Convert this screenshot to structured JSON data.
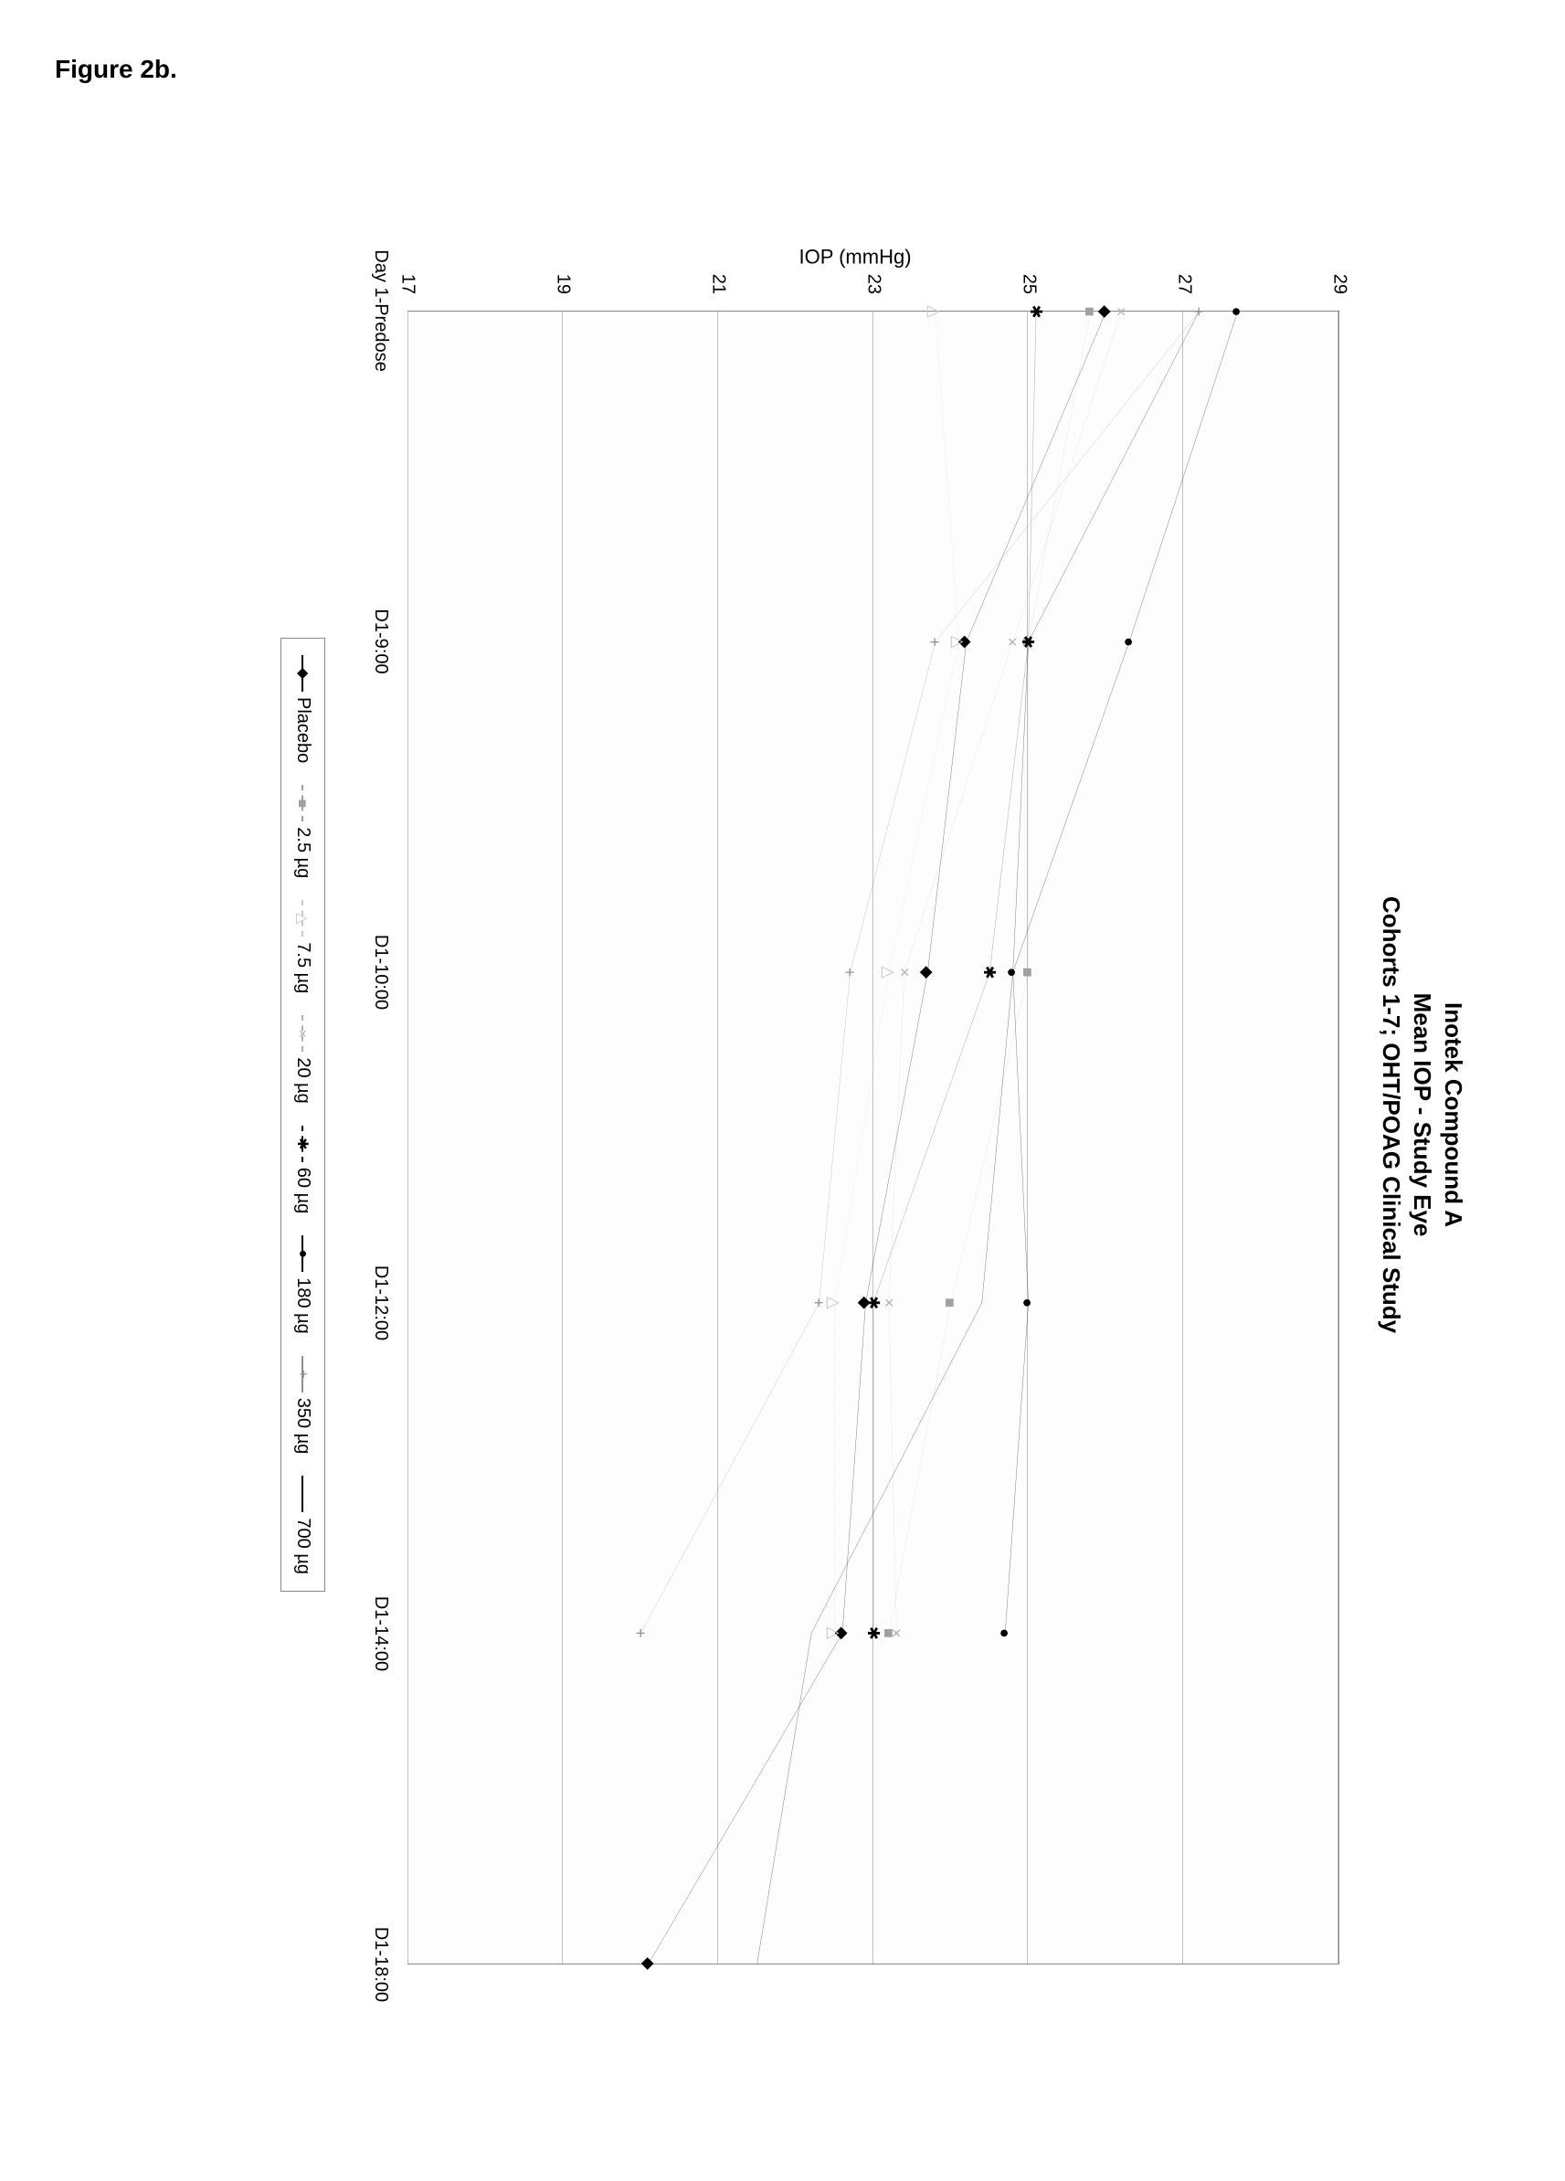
{
  "figure_label": "Figure 2b.",
  "chart": {
    "type": "line",
    "title_line1": "Inotek Compound A",
    "title_line2": "Mean IOP - Study Eye",
    "title_line3": "Cohorts 1-7; OHT/POAG Clinical Study",
    "title_fontsize": 26,
    "ylabel": "IOP (mmHg)",
    "label_fontsize": 22,
    "tick_fontsize": 20,
    "ylim": [
      17,
      29
    ],
    "ytick_step": 2,
    "yticks": [
      17,
      19,
      21,
      23,
      25,
      27,
      29
    ],
    "x_categories": [
      "Day 1-Predose",
      "D1-9:00",
      "D1-10:00",
      "D1-12:00",
      "D1-14:00",
      "D1-18:00"
    ],
    "x_positions": [
      0,
      0.2,
      0.4,
      0.6,
      0.8,
      1.0
    ],
    "background_color": "#fdfdfd",
    "grid_color": "#c0c0c0",
    "border_color": "#888888",
    "line_width": 2,
    "series": [
      {
        "name": "Placebo",
        "label": "Placebo",
        "marker": "diamond",
        "marker_glyph": "◆",
        "color": "#000000",
        "dash": "none",
        "values": [
          26.0,
          24.2,
          23.7,
          22.9,
          22.6,
          20.1
        ]
      },
      {
        "name": "2.5 µg",
        "label": "2.5 µg",
        "marker": "square",
        "marker_glyph": "■",
        "color": "#a0a0a0",
        "dash": "4,4",
        "values": [
          25.8,
          25.0,
          25.0,
          24.0,
          23.2,
          null
        ]
      },
      {
        "name": "7.5 µg",
        "label": "7.5 µg",
        "marker": "triangle",
        "marker_glyph": "△",
        "color": "#c8c8c8",
        "dash": "3,3",
        "values": [
          23.8,
          24.1,
          23.2,
          22.5,
          22.5,
          null
        ]
      },
      {
        "name": "20 µg",
        "label": "20 µg",
        "marker": "x",
        "marker_glyph": "×",
        "color": "#b0b0b0",
        "dash": "5,3",
        "values": [
          26.2,
          24.8,
          23.4,
          23.2,
          23.3,
          null
        ]
      },
      {
        "name": "60 µg",
        "label": "60 µg",
        "marker": "asterisk",
        "marker_glyph": "✱",
        "color": "#000000",
        "dash": "6,3",
        "values": [
          25.1,
          25.0,
          24.5,
          23.0,
          23.0,
          null
        ]
      },
      {
        "name": "180 µg",
        "label": "180 µg",
        "marker": "circle",
        "marker_glyph": "●",
        "color": "#000000",
        "dash": "none",
        "values": [
          27.7,
          26.3,
          24.8,
          25.0,
          24.7,
          null
        ]
      },
      {
        "name": "350 µg",
        "label": "350 µg",
        "marker": "plus",
        "marker_glyph": "+",
        "color": "#909090",
        "dash": "none",
        "values": [
          27.2,
          23.8,
          22.7,
          22.3,
          20.0,
          null
        ]
      },
      {
        "name": "700 µg",
        "label": "700 µg",
        "marker": "none",
        "marker_glyph": "—",
        "color": "#000000",
        "dash": "none",
        "values": [
          27.2,
          25.0,
          24.8,
          24.4,
          22.2,
          21.5
        ]
      }
    ]
  }
}
